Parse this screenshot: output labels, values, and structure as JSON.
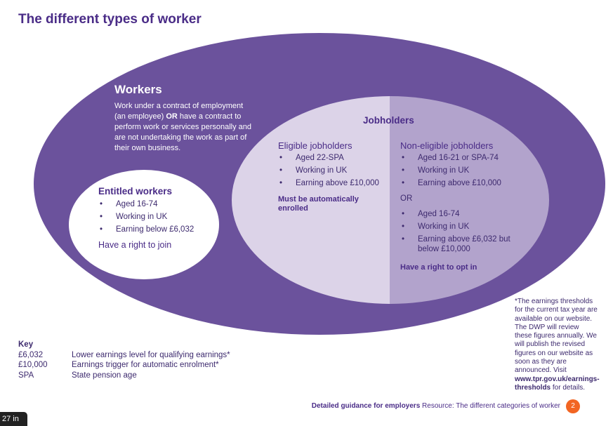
{
  "title": "The different types of worker",
  "colors": {
    "outer": "#6b529c",
    "eligible": "#dcd3e8",
    "non_eligible": "#b2a3cc",
    "title": "#4a2c87",
    "page_badge": "#f26522"
  },
  "workers": {
    "heading": "Workers",
    "description_1": "Work under a contract of employment (an employee) ",
    "description_or": "OR",
    "description_2": " have a contract to perform work or services personally and are not undertaking the work as part of their own business."
  },
  "entitled": {
    "heading": "Entitled workers",
    "items": [
      "Aged 16-74",
      "Working in UK",
      "Earning below £6,032"
    ],
    "note": "Have a right to join"
  },
  "jobholders": {
    "heading": "Jobholders"
  },
  "eligible": {
    "heading": "Eligible jobholders",
    "items": [
      "Aged 22-SPA",
      "Working in UK",
      "Earning above £10,000"
    ],
    "note": "Must be automatically enrolled"
  },
  "non_eligible": {
    "heading": "Non-eligible jobholders",
    "items_a": [
      "Aged 16-21 or SPA-74",
      "Working in UK",
      "Earning above £10,000"
    ],
    "or": "OR",
    "items_b": [
      "Aged 16-74",
      "Working in UK",
      "Earning above £6,032 but below £10,000"
    ],
    "note": "Have a right to opt in"
  },
  "footnote": {
    "text": "*The earnings thresholds for the current tax year are available on our website. The DWP will review these figures annually. We will publish the revised figures on our website as soon as they are announced. Visit ",
    "link": "www.tpr.gov.uk/earnings-thresholds",
    "after": " for details."
  },
  "key": {
    "heading": "Key",
    "rows": [
      {
        "term": "£6,032",
        "def": "Lower earnings level for qualifying earnings*"
      },
      {
        "term": "£10,000",
        "def": "Earnings trigger for automatic enrolment*"
      },
      {
        "term": "SPA",
        "def": "State pension age"
      }
    ]
  },
  "footer": {
    "bold": "Detailed guidance for employers",
    "text": " Resource: The different categories of worker",
    "page": "2"
  },
  "overlay": {
    "text": "27 in"
  }
}
